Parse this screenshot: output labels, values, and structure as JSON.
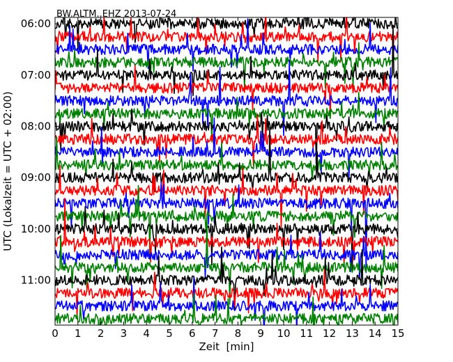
{
  "chart_data": {
    "type": "line",
    "title": "BW.ALTM..EHZ 2013-07-24",
    "xlabel": "Zeit  [min]",
    "ylabel": "UTC (Lokalzeit = UTC + 02:00)",
    "xlim": [
      0,
      15
    ],
    "x_ticks": [
      "0",
      "1",
      "2",
      "3",
      "4",
      "5",
      "6",
      "7",
      "8",
      "9",
      "10",
      "11",
      "12",
      "13",
      "14",
      "15"
    ],
    "y_ticks": [
      "06:00",
      "07:00",
      "08:00",
      "09:00",
      "10:00",
      "11:00"
    ],
    "start_hour": 6,
    "end_hour": 12,
    "minutes_per_line": 15,
    "line_colors": [
      "#000000",
      "#ff0000",
      "#0000ff",
      "#008000"
    ],
    "grid": false,
    "legend": "none"
  }
}
